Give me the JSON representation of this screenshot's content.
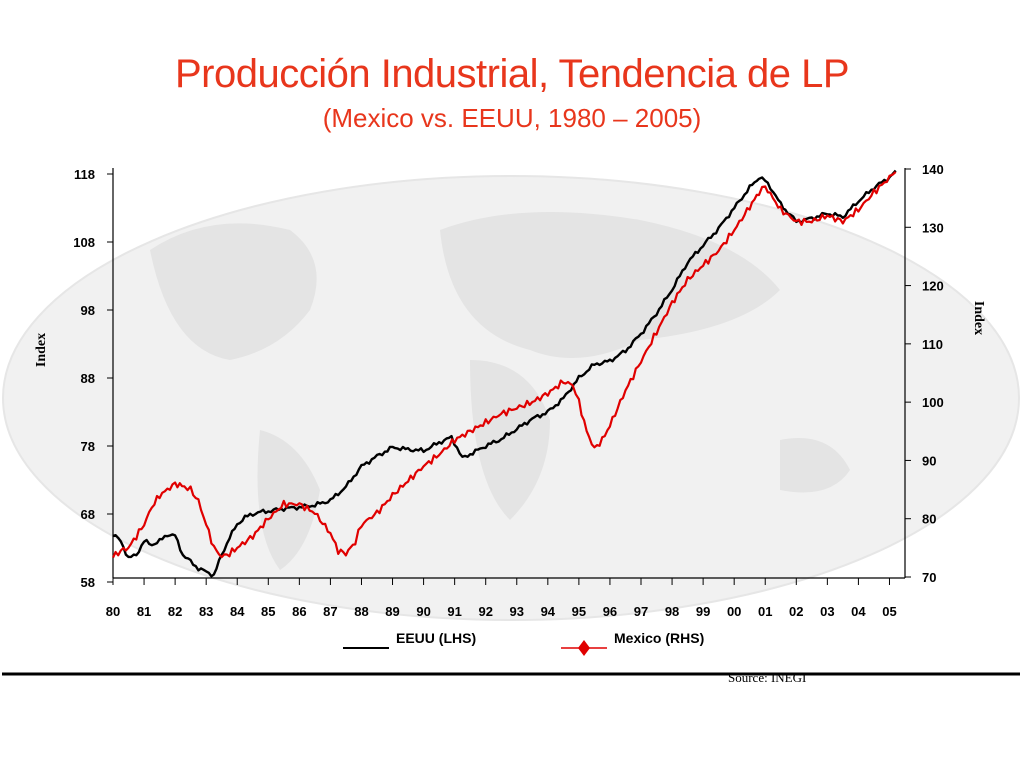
{
  "chart_data": {
    "type": "line",
    "title": "Producción Industrial, Tendencia de LP",
    "subtitle": "(Mexico vs. EEUU, 1980 – 2005)",
    "ylabel_left": "Index",
    "ylabel_right": "Index",
    "left_ticks": [
      "118",
      "108",
      "98",
      "88",
      "78",
      "68",
      "58"
    ],
    "right_ticks": [
      "140",
      "130",
      "120",
      "110",
      "100",
      "90",
      "80",
      "70"
    ],
    "x_ticks": [
      "80",
      "81",
      "82",
      "83",
      "84",
      "85",
      "86",
      "87",
      "88",
      "89",
      "90",
      "91",
      "92",
      "93",
      "94",
      "95",
      "96",
      "97",
      "98",
      "99",
      "00",
      "01",
      "02",
      "03",
      "04",
      "05"
    ],
    "ylim_left": [
      58,
      118
    ],
    "ylim_right": [
      70,
      140
    ],
    "xlim": [
      1980,
      2005.5
    ],
    "legend": {
      "position": "bottom-center"
    },
    "source": "Source: INEGI",
    "series": [
      {
        "name": "EEUU (LHS)",
        "axis": "left",
        "color": "#000000",
        "x": [
          1980.0,
          1980.25,
          1980.5,
          1980.75,
          1981.0,
          1981.25,
          1981.5,
          1981.75,
          1982.0,
          1982.25,
          1982.5,
          1982.75,
          1983.0,
          1983.25,
          1983.5,
          1983.75,
          1984.0,
          1984.25,
          1984.5,
          1984.75,
          1985.0,
          1985.5,
          1986.0,
          1986.5,
          1987.0,
          1987.5,
          1988.0,
          1988.5,
          1989.0,
          1989.5,
          1990.0,
          1990.5,
          1990.9,
          1991.25,
          1991.5,
          1992.0,
          1992.5,
          1993.0,
          1993.5,
          1994.0,
          1994.5,
          1995.0,
          1995.5,
          1996.0,
          1996.5,
          1997.0,
          1997.5,
          1998.0,
          1998.5,
          1999.0,
          1999.5,
          2000.0,
          2000.5,
          2000.8,
          2001.0,
          2001.25,
          2001.5,
          2001.8,
          2002.0,
          2002.5,
          2003.0,
          2003.5,
          2004.0,
          2004.5,
          2005.0,
          2005.2
        ],
        "values": [
          65,
          64,
          61.5,
          62,
          64,
          63.5,
          64,
          65,
          64.8,
          62,
          61,
          60,
          59.5,
          59,
          62,
          64.5,
          66.5,
          67.5,
          68,
          68.3,
          68.4,
          68.8,
          69,
          69.3,
          70,
          72,
          75,
          76.5,
          77.8,
          77.5,
          77.3,
          78.5,
          79.3,
          76.2,
          76.8,
          78,
          79,
          80.5,
          82,
          83,
          85,
          88,
          90,
          90.5,
          92,
          94.5,
          97.5,
          101,
          105,
          107.5,
          110,
          113,
          116,
          117.5,
          117,
          115.5,
          113.5,
          112,
          111,
          111.5,
          112.2,
          111.7,
          114,
          116,
          117.5,
          118.5
        ]
      },
      {
        "name": "Mexico (RHS)",
        "axis": "right",
        "color": "#e00000",
        "x": [
          1980.0,
          1980.25,
          1980.5,
          1980.75,
          1981.0,
          1981.25,
          1981.5,
          1982.0,
          1982.3,
          1982.5,
          1982.75,
          1983.0,
          1983.25,
          1983.5,
          1983.75,
          1984.0,
          1984.5,
          1985.0,
          1985.5,
          1986.0,
          1986.5,
          1987.0,
          1987.25,
          1987.5,
          1987.8,
          1988.0,
          1988.5,
          1989.0,
          1989.5,
          1990.0,
          1990.5,
          1991.0,
          1991.5,
          1992.0,
          1992.5,
          1993.0,
          1993.5,
          1994.0,
          1994.5,
          1994.8,
          1995.0,
          1995.25,
          1995.5,
          1995.75,
          1996.0,
          1996.5,
          1997.0,
          1997.5,
          1998.0,
          1998.5,
          1999.0,
          1999.5,
          2000.0,
          2000.5,
          2000.8,
          2001.0,
          2001.25,
          2001.5,
          2002.0,
          2002.5,
          2003.0,
          2003.5,
          2004.0,
          2004.5,
          2005.0,
          2005.2
        ],
        "values": [
          73.5,
          74.5,
          75,
          77,
          79,
          82,
          84,
          86,
          85.5,
          85,
          83,
          79,
          75,
          73.5,
          74,
          75,
          77,
          80,
          82.5,
          82.5,
          81,
          77.5,
          74.5,
          74,
          76,
          79,
          81,
          84,
          86.5,
          89,
          91,
          93.5,
          95,
          96.5,
          98,
          99,
          100,
          101.5,
          103.5,
          103,
          100,
          95,
          92,
          93.5,
          96,
          102,
          107,
          112,
          117,
          121,
          123.5,
          126,
          129.5,
          133.5,
          136,
          137,
          135,
          133,
          131,
          131,
          132,
          131,
          133,
          136,
          138.5,
          139.5
        ]
      }
    ]
  }
}
